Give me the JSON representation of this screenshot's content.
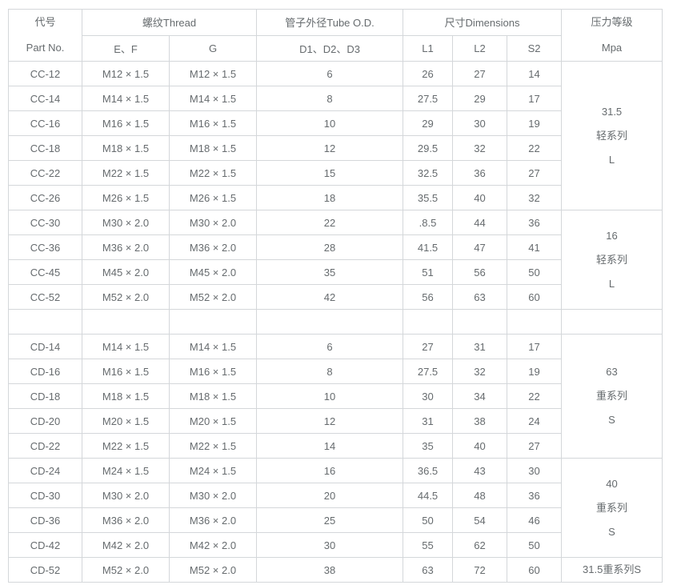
{
  "colors": {
    "border": "#d4d7da",
    "text": "#666b6e",
    "background": "#ffffff"
  },
  "table": {
    "header": {
      "part_no_line1": "代号",
      "part_no_line2": "Part No.",
      "thread_group": "螺纹Thread",
      "thread_sub_ef": "E、F",
      "thread_sub_g": "G",
      "tube_od_group": "管子外径Tube O.D.",
      "tube_od_sub": "D1、D2、D3",
      "dimensions_group": "尺寸Dimensions",
      "dim_sub_l1": "L1",
      "dim_sub_l2": "L2",
      "dim_sub_s2": "S2",
      "pressure_line1": "压力等级",
      "pressure_line2": "Mpa"
    },
    "rows": [
      [
        "CC-12",
        "M12 × 1.5",
        "M12 × 1.5",
        "6",
        "26",
        "27",
        "14"
      ],
      [
        "CC-14",
        "M14 × 1.5",
        "M14 × 1.5",
        "8",
        "27.5",
        "29",
        "17"
      ],
      [
        "CC-16",
        "M16 × 1.5",
        "M16 × 1.5",
        "10",
        "29",
        "30",
        "19"
      ],
      [
        "CC-18",
        "M18 × 1.5",
        "M18 × 1.5",
        "12",
        "29.5",
        "32",
        "22"
      ],
      [
        "CC-22",
        "M22 × 1.5",
        "M22 × 1.5",
        "15",
        "32.5",
        "36",
        "27"
      ],
      [
        "CC-26",
        "M26 × 1.5",
        "M26 × 1.5",
        "18",
        "35.5",
        "40",
        "32"
      ],
      [
        "CC-30",
        "M30 × 2.0",
        "M30 × 2.0",
        "22",
        ".8.5",
        "44",
        "36"
      ],
      [
        "CC-36",
        "M36 × 2.0",
        "M36 × 2.0",
        "28",
        "41.5",
        "47",
        "41"
      ],
      [
        "CC-45",
        "M45 × 2.0",
        "M45 × 2.0",
        "35",
        "51",
        "56",
        "50"
      ],
      [
        "CC-52",
        "M52 × 2.0",
        "M52 × 2.0",
        "42",
        "56",
        "63",
        "60"
      ],
      [
        "",
        "",
        "",
        "",
        "",
        "",
        ""
      ],
      [
        "CD-14",
        "M14 × 1.5",
        "M14 × 1.5",
        "6",
        "27",
        "31",
        "17"
      ],
      [
        "CD-16",
        "M16 × 1.5",
        "M16 × 1.5",
        "8",
        "27.5",
        "32",
        "19"
      ],
      [
        "CD-18",
        "M18 × 1.5",
        "M18 × 1.5",
        "10",
        "30",
        "34",
        "22"
      ],
      [
        "CD-20",
        "M20 × 1.5",
        "M20 × 1.5",
        "12",
        "31",
        "38",
        "24"
      ],
      [
        "CD-22",
        "M22 × 1.5",
        "M22 × 1.5",
        "14",
        "35",
        "40",
        "27"
      ],
      [
        "CD-24",
        "M24 × 1.5",
        "M24 × 1.5",
        "16",
        "36.5",
        "43",
        "30"
      ],
      [
        "CD-30",
        "M30 × 2.0",
        "M30 × 2.0",
        "20",
        "44.5",
        "48",
        "36"
      ],
      [
        "CD-36",
        "M36 × 2.0",
        "M36 × 2.0",
        "25",
        "50",
        "54",
        "46"
      ],
      [
        "CD-42",
        "M42 × 2.0",
        "M42 × 2.0",
        "30",
        "55",
        "62",
        "50"
      ],
      [
        "CD-52",
        "M52 × 2.0",
        "M52 × 2.0",
        "38",
        "63",
        "72",
        "60"
      ]
    ],
    "pressure_cells": [
      {
        "row": 0,
        "rowspan": 6,
        "lines": [
          "31.5",
          "轻系列",
          "L"
        ]
      },
      {
        "row": 6,
        "rowspan": 4,
        "lines": [
          "16",
          "轻系列",
          "L"
        ]
      },
      {
        "row": 10,
        "rowspan": 1,
        "lines": []
      },
      {
        "row": 11,
        "rowspan": 5,
        "lines": [
          "63",
          "重系列",
          "S"
        ]
      },
      {
        "row": 16,
        "rowspan": 4,
        "lines": [
          "40",
          "重系列",
          "S"
        ]
      },
      {
        "row": 20,
        "rowspan": 1,
        "lines": [
          "31.5重系列S"
        ]
      }
    ]
  }
}
